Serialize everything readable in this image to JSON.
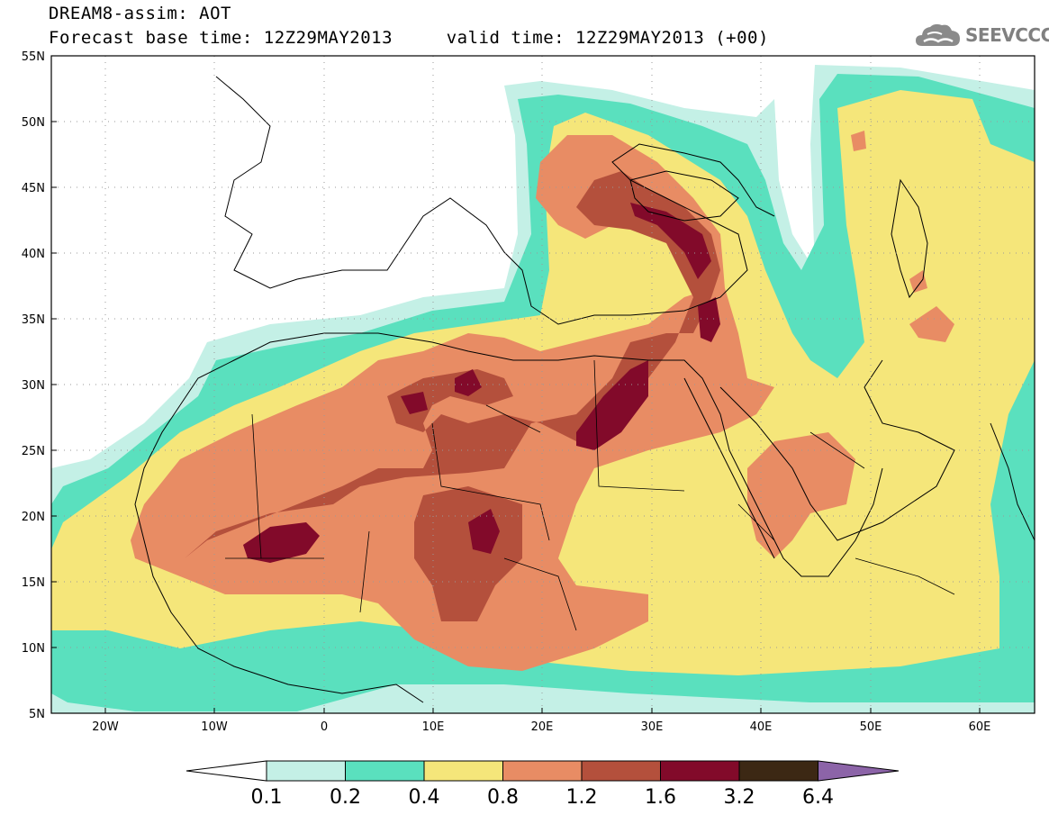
{
  "header": {
    "title_line1": "DREAM8-assim: AOT",
    "title_line2": "Forecast base time: 12Z29MAY2013     valid time: 12Z29MAY2013 (+00)",
    "logo_text": "SEEVCCC",
    "logo_icon": "cloud-icon"
  },
  "axes": {
    "lat_labels": [
      "55N",
      "50N",
      "45N",
      "40N",
      "35N",
      "30N",
      "25N",
      "20N",
      "15N",
      "10N",
      "5N"
    ],
    "lon_labels": [
      "20W",
      "10W",
      "0",
      "10E",
      "20E",
      "30E",
      "40E",
      "50E",
      "60E"
    ],
    "lon_range": [
      -25,
      65
    ],
    "lat_range": [
      5,
      55
    ],
    "grid": "dotted"
  },
  "legend": {
    "labels": [
      "0.1",
      "0.2",
      "0.4",
      "0.8",
      "1.2",
      "1.6",
      "3.2",
      "6.4"
    ],
    "colors": [
      "#ffffff",
      "#c4f0e6",
      "#5ae0be",
      "#f5e67a",
      "#e88c64",
      "#b4503c",
      "#820a2a",
      "#3c2814",
      "#8c64a8"
    ]
  }
}
